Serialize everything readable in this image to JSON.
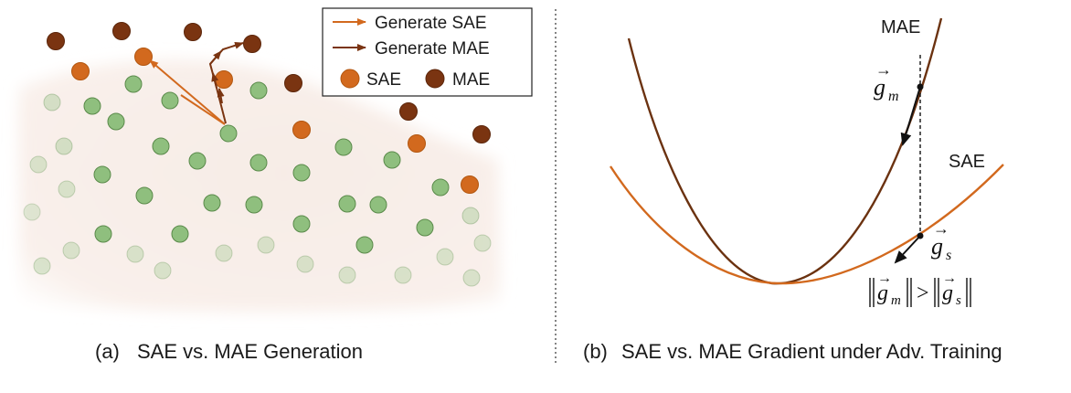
{
  "colors": {
    "sae": "#d2691e",
    "mae": "#7a3411",
    "benign_fill": "#8fbf7e",
    "benign_stroke": "#5a8a4a",
    "region": "#f6e9e2"
  },
  "legend": {
    "generate_sae": "Generate SAE",
    "generate_mae": "Generate MAE",
    "sae": "SAE",
    "mae": "MAE"
  },
  "left_caption": {
    "tag": "(a)",
    "text": "SAE vs. MAE Generation"
  },
  "right_caption": {
    "tag": "(b)",
    "text": "SAE vs. MAE Gradient under Adv. Training"
  },
  "curves": {
    "mae_label": "MAE",
    "sae_label": "SAE"
  },
  "gradients": {
    "g_m_base": "g",
    "g_m_sub": "m",
    "g_s_base": "g",
    "g_s_sub": "s",
    "gt": ">"
  },
  "icons": {
    "legend_sae_arrow": "arrow-right-icon",
    "legend_mae_arrow": "arrow-right-icon"
  }
}
